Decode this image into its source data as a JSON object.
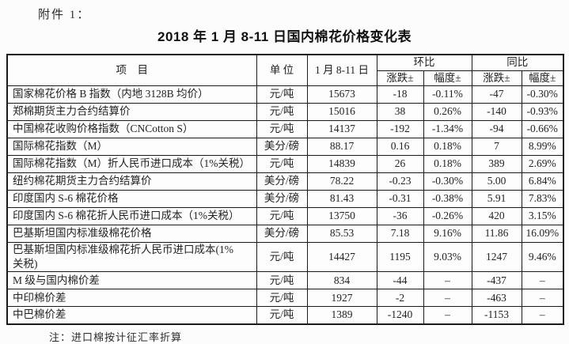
{
  "attachment_label": "附件 1：",
  "title": "2018 年 1 月 8-11 日国内棉花价格变化表",
  "colors": {
    "text": "#232323",
    "border": "#1a1a1a",
    "background": "#fcfcfc"
  },
  "table": {
    "headers": {
      "item": "项　目",
      "unit": "单 位",
      "date": "1 月 8-11 日",
      "mom_group": "环比",
      "yoy_group": "同比",
      "change": "涨跌±",
      "range": "幅度±"
    },
    "rows": [
      {
        "item": "国家棉花价格 B 指数（内地 3128B 均价）",
        "unit": "元/吨",
        "value": "15673",
        "mom_change": "-18",
        "mom_range": "-0.11%",
        "yoy_change": "-47",
        "yoy_range": "-0.30%"
      },
      {
        "item": "郑棉期货主力合约结算价",
        "unit": "元/吨",
        "value": "15016",
        "mom_change": "38",
        "mom_range": "0.26%",
        "yoy_change": "-140",
        "yoy_range": "-0.93%"
      },
      {
        "item": "中国棉花收购价格指数（CNCotton S）",
        "unit": "元/吨",
        "value": "14137",
        "mom_change": "-192",
        "mom_range": "-1.34%",
        "yoy_change": "-94",
        "yoy_range": "-0.66%"
      },
      {
        "item": "国际棉花指数（M）",
        "unit": "美分/磅",
        "value": "88.17",
        "mom_change": "0.16",
        "mom_range": "0.18%",
        "yoy_change": "7",
        "yoy_range": "8.99%"
      },
      {
        "item": "国际棉花指数（M）折人民币进口成本（1%关税）",
        "unit": "元/吨",
        "value": "14839",
        "mom_change": "26",
        "mom_range": "0.18%",
        "yoy_change": "389",
        "yoy_range": "2.69%"
      },
      {
        "item": "纽约棉花期货主力合约结算价",
        "unit": "美分/磅",
        "value": "78.22",
        "mom_change": "-0.23",
        "mom_range": "-0.30%",
        "yoy_change": "5.00",
        "yoy_range": "6.84%"
      },
      {
        "item": "印度国内 S-6 棉花价格",
        "unit": "美分/磅",
        "value": "81.43",
        "mom_change": "-0.31",
        "mom_range": "-0.38%",
        "yoy_change": "5.91",
        "yoy_range": "7.83%"
      },
      {
        "item": "印度国内 S-6 棉花折人民币进口成本（1%关税）",
        "unit": "元/吨",
        "value": "13750",
        "mom_change": "-36",
        "mom_range": "-0.26%",
        "yoy_change": "420",
        "yoy_range": "3.15%"
      },
      {
        "item": "巴基斯坦国内标准级棉花价格",
        "unit": "美分/磅",
        "value": "85.53",
        "mom_change": "7.18",
        "mom_range": "9.16%",
        "yoy_change": "11.86",
        "yoy_range": "16.09%"
      },
      {
        "item": "巴基斯坦国内标准级棉花折人民币进口成本(1%\n关税)",
        "unit": "元/吨",
        "value": "14427",
        "mom_change": "1195",
        "mom_range": "9.03%",
        "yoy_change": "1247",
        "yoy_range": "9.46%"
      },
      {
        "item": "M 级与国内棉价差",
        "unit": "元/吨",
        "value": "834",
        "mom_change": "-44",
        "mom_range": "–",
        "yoy_change": "-437",
        "yoy_range": "–"
      },
      {
        "item": "中印棉价差",
        "unit": "元/吨",
        "value": "1927",
        "mom_change": "-2",
        "mom_range": "–",
        "yoy_change": "-463",
        "yoy_range": "–"
      },
      {
        "item": "中巴棉价差",
        "unit": "元/吨",
        "value": "1389",
        "mom_change": "-1240",
        "mom_range": "–",
        "yoy_change": "-1153",
        "yoy_range": "–"
      }
    ]
  },
  "note": "注：进口棉按计征汇率折算"
}
